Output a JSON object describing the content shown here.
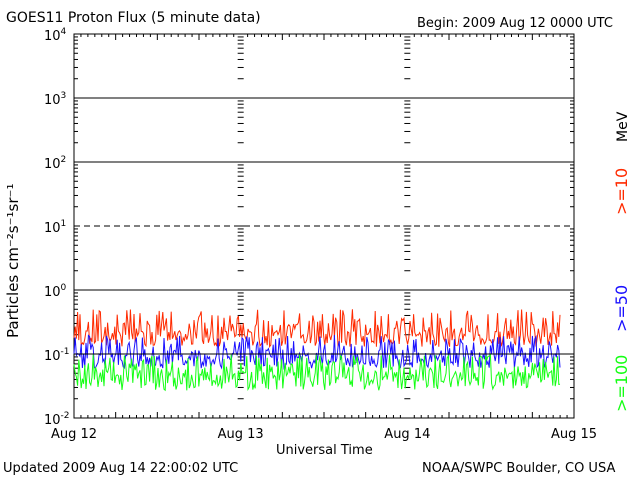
{
  "header": {
    "title": "GOES11 Proton Flux (5 minute data)",
    "begin": "Begin: 2009 Aug 12 0000 UTC"
  },
  "footer": {
    "updated": "Updated 2009 Aug 14 22:00:02 UTC",
    "credit": "NOAA/SWPC Boulder, CO USA"
  },
  "chart_data": {
    "type": "line",
    "title": "GOES11 Proton Flux (5 minute data)",
    "xlabel": "Universal Time",
    "ylabel": "Particles cm⁻²s⁻¹sr⁻¹",
    "yscale": "log",
    "ylim": [
      0.01,
      10000
    ],
    "xlim": [
      "Aug 12",
      "Aug 15"
    ],
    "x_ticks": [
      "Aug 12",
      "Aug 13",
      "Aug 14",
      "Aug 15"
    ],
    "y_ticks": [
      {
        "base": "10",
        "exp": "4",
        "value": 10000
      },
      {
        "base": "10",
        "exp": "3",
        "value": 1000
      },
      {
        "base": "10",
        "exp": "2",
        "value": 100
      },
      {
        "base": "10",
        "exp": "1",
        "value": 10
      },
      {
        "base": "10",
        "exp": "0",
        "value": 1
      },
      {
        "base": "10",
        "exp": "-1",
        "value": 0.1
      },
      {
        "base": "10",
        "exp": "-2",
        "value": 0.01
      }
    ],
    "dashed_reference_level": 10,
    "unit_label": "MeV",
    "series": [
      {
        "name": ">=10",
        "color": "#ff2a00",
        "approx_min": 0.13,
        "approx_max": 0.5,
        "typical": 0.22
      },
      {
        "name": ">=50",
        "color": "#1a10ff",
        "approx_min": 0.06,
        "approx_max": 0.2,
        "typical": 0.1
      },
      {
        "name": ">=100",
        "color": "#14ff14",
        "approx_min": 0.027,
        "approx_max": 0.1,
        "typical": 0.05
      }
    ],
    "data_end": "2009 Aug 14 22:00"
  }
}
